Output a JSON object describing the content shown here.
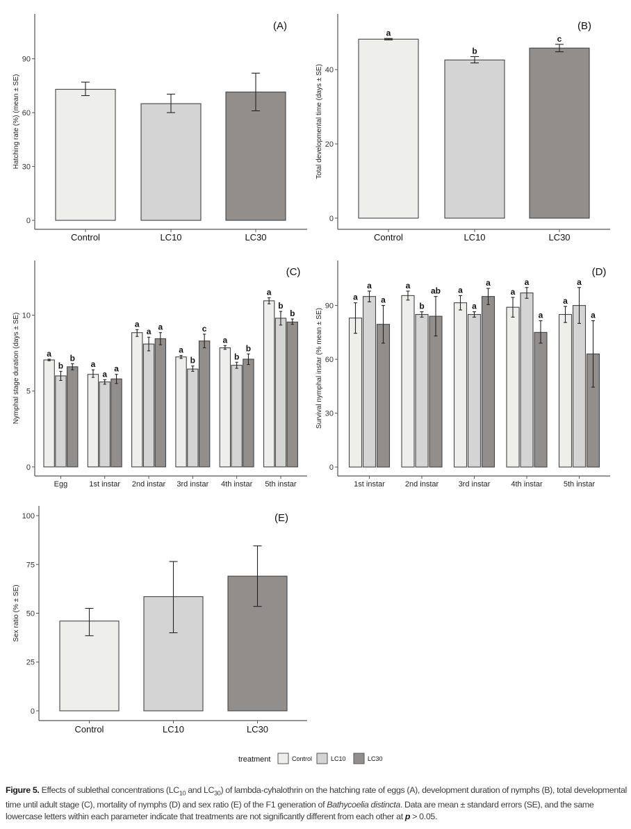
{
  "legend": {
    "title": "treatment",
    "entries": [
      {
        "label": "Control",
        "color": "#eeeeec"
      },
      {
        "label": "LC10",
        "color": "#d4d4d4"
      },
      {
        "label": "LC30",
        "color": "#918e8b"
      }
    ]
  },
  "caption": {
    "figure_label": "Figure 5.",
    "part1": " Effects of sublethal concentrations (LC",
    "sub1": "10",
    "part2": " and LC",
    "sub2": "30",
    "part3": ") of lambda-cyhalothrin on the hatching rate of eggs (A), development duration of nymphs (B), total developmental time until adult stage (C), mortality of nymphs (D) and sex ratio (E) of the F1 generation of ",
    "species": "Bathycoelia distincta",
    "part4": ". Data are mean ± standard errors (SE), and the same lowercase letters within each parameter indicate that treatments are not significantly different from each other at ",
    "p_symbol": "p",
    "part5": " > 0.05."
  },
  "chart_data": [
    {
      "panel": "(A)",
      "type": "bar",
      "ylabel": "Hatching rate (%) (mean ± SE)",
      "xlabel": "",
      "ylim": [
        -5,
        115
      ],
      "yticks": [
        0,
        30,
        60,
        90
      ],
      "categories": [
        "Control",
        "LC10",
        "LC30"
      ],
      "values": [
        73,
        65,
        71.5
      ],
      "se_low": [
        69.5,
        60,
        61
      ],
      "se_high": [
        77,
        70.3,
        82
      ],
      "letters": [
        "",
        "",
        ""
      ]
    },
    {
      "panel": "(B)",
      "type": "bar",
      "ylabel": "Total developmental time (days ± SE)",
      "xlabel": "",
      "ylim": [
        -3,
        55
      ],
      "yticks": [
        0,
        20,
        40
      ],
      "categories": [
        "Control",
        "LC10",
        "LC30"
      ],
      "values": [
        48.2,
        42.6,
        45.8
      ],
      "se_low": [
        48.0,
        41.8,
        44.8
      ],
      "se_high": [
        48.4,
        43.5,
        46.8
      ],
      "letters": [
        "a",
        "b",
        "c"
      ]
    },
    {
      "panel": "(C)",
      "type": "bar",
      "ylabel": "Nymphal stage duration (days ± SE)",
      "xlabel": "",
      "ylim": [
        -0.6,
        13.6
      ],
      "yticks": [
        0,
        5,
        10
      ],
      "categories": [
        "Egg",
        "1st instar",
        "2nd instar",
        "3rd instar",
        "4th instar",
        "5th instar"
      ],
      "series": [
        {
          "name": "Control",
          "values": [
            7.05,
            6.1,
            8.85,
            7.25,
            7.85,
            10.95
          ],
          "se_low": [
            7.0,
            5.9,
            8.6,
            7.15,
            7.75,
            10.75
          ],
          "se_high": [
            7.1,
            6.4,
            9.05,
            7.35,
            8.0,
            11.15
          ],
          "letters": [
            "a",
            "a",
            "a",
            "a",
            "a",
            "a"
          ]
        },
        {
          "name": "LC10",
          "values": [
            6.0,
            5.6,
            8.1,
            6.45,
            6.7,
            9.8
          ],
          "se_low": [
            5.7,
            5.45,
            7.65,
            6.3,
            6.5,
            9.35
          ],
          "se_high": [
            6.3,
            5.75,
            8.55,
            6.65,
            6.9,
            10.25
          ],
          "letters": [
            "b",
            "a",
            "a",
            "b",
            "b",
            "b"
          ]
        },
        {
          "name": "LC30",
          "values": [
            6.6,
            5.8,
            8.45,
            8.3,
            7.1,
            9.55
          ],
          "se_low": [
            6.4,
            5.5,
            8.05,
            7.85,
            6.75,
            9.4
          ],
          "se_high": [
            6.8,
            6.1,
            8.85,
            8.75,
            7.45,
            9.75
          ],
          "letters": [
            "b",
            "a",
            "a",
            "c",
            "b",
            "b"
          ]
        }
      ]
    },
    {
      "panel": "(D)",
      "type": "bar",
      "ylabel": "Survival nymphal instar (% mean ± SE)",
      "xlabel": "",
      "ylim": [
        -5,
        115
      ],
      "yticks": [
        0,
        30,
        60,
        90
      ],
      "categories": [
        "1st instar",
        "2nd instar",
        "3rd instar",
        "4th instar",
        "5th instar"
      ],
      "series": [
        {
          "name": "Control",
          "values": [
            83,
            95.5,
            91.5,
            89,
            85
          ],
          "se_low": [
            74.5,
            93,
            87.5,
            83.5,
            80.5
          ],
          "se_high": [
            91.5,
            98,
            95.5,
            94.5,
            89.5
          ],
          "letters": [
            "a",
            "a",
            "a",
            "a",
            "a"
          ]
        },
        {
          "name": "LC10",
          "values": [
            95,
            85,
            85,
            97,
            90
          ],
          "se_low": [
            92,
            83.5,
            83.5,
            94,
            80
          ],
          "se_high": [
            98,
            86.5,
            86.5,
            100,
            100
          ],
          "letters": [
            "a",
            "b",
            "a",
            "a",
            "a"
          ]
        },
        {
          "name": "LC30",
          "values": [
            79.5,
            84,
            95,
            75,
            63
          ],
          "se_low": [
            69,
            73,
            90.5,
            69,
            44.5
          ],
          "se_high": [
            90,
            95,
            99.5,
            81.5,
            81.5
          ],
          "letters": [
            "a",
            "ab",
            "a",
            "a",
            "a"
          ]
        }
      ]
    },
    {
      "panel": "(E)",
      "type": "bar",
      "ylabel": "Sex ratio (% ± SE)",
      "xlabel": "",
      "ylim": [
        -5,
        105
      ],
      "yticks": [
        0,
        25,
        50,
        75,
        100
      ],
      "categories": [
        "Control",
        "LC10",
        "LC30"
      ],
      "values": [
        46,
        58.5,
        69
      ],
      "se_low": [
        38.5,
        40,
        53.5
      ],
      "se_high": [
        52.5,
        76.5,
        84.5
      ],
      "letters": [
        "",
        "",
        ""
      ]
    }
  ]
}
